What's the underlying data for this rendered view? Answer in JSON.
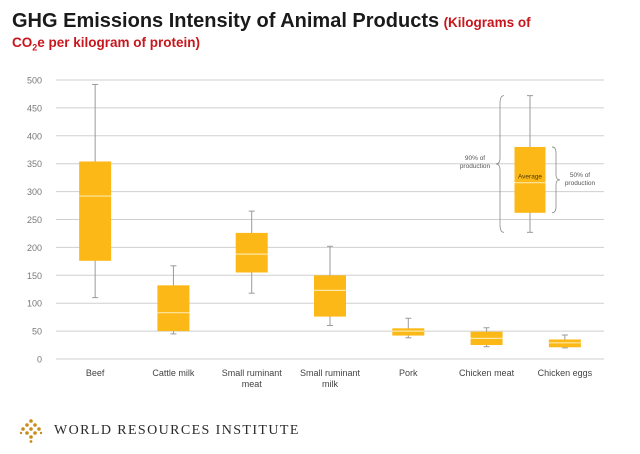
{
  "header": {
    "title": "GHG Emissions Intensity of Animal Products",
    "subtitle_open": "(Kilograms of",
    "subtitle_co": "CO",
    "subtitle_sub": "2",
    "subtitle_rest": "e per kilogram of protein)"
  },
  "legend": {
    "label_90": [
      "90% of",
      "production"
    ],
    "label_50": [
      "50% of",
      "production"
    ],
    "label_average": "Average",
    "example": {
      "min": 227,
      "q1": 262,
      "median": 316,
      "q3": 380,
      "max": 472
    }
  },
  "footer": {
    "org": "WORLD RESOURCES INSTITUTE",
    "logo_icon": "wri-diamond-logo-icon"
  },
  "colors": {
    "box": "#fbb817",
    "median": "#fde7a4",
    "whisker": "#9a9a9a",
    "grid": "#cfcfcf",
    "title_red": "#c8161d"
  },
  "chart_data": {
    "type": "box",
    "yticks": [
      0,
      50,
      100,
      150,
      200,
      250,
      300,
      350,
      400,
      450,
      500
    ],
    "ylim": [
      0,
      500
    ],
    "grid": true,
    "categories": [
      {
        "label": [
          "Beef"
        ],
        "min": 110,
        "q1": 176,
        "median": 292,
        "q3": 354,
        "max": 492
      },
      {
        "label": [
          "Cattle milk"
        ],
        "min": 45,
        "q1": 50,
        "median": 83,
        "q3": 132,
        "max": 167
      },
      {
        "label": [
          "Small ruminant",
          "meat"
        ],
        "min": 118,
        "q1": 155,
        "median": 188,
        "q3": 226,
        "max": 265
      },
      {
        "label": [
          "Small ruminant",
          "milk"
        ],
        "min": 60,
        "q1": 76,
        "median": 123,
        "q3": 150,
        "max": 202
      },
      {
        "label": [
          "Pork"
        ],
        "min": 38,
        "q1": 42,
        "median": 50,
        "q3": 55,
        "max": 73
      },
      {
        "label": [
          "Chicken meat"
        ],
        "min": 22,
        "q1": 25,
        "median": 37,
        "q3": 49,
        "max": 56
      },
      {
        "label": [
          "Chicken eggs"
        ],
        "min": 20,
        "q1": 21,
        "median": 29,
        "q3": 35,
        "max": 43
      }
    ]
  }
}
